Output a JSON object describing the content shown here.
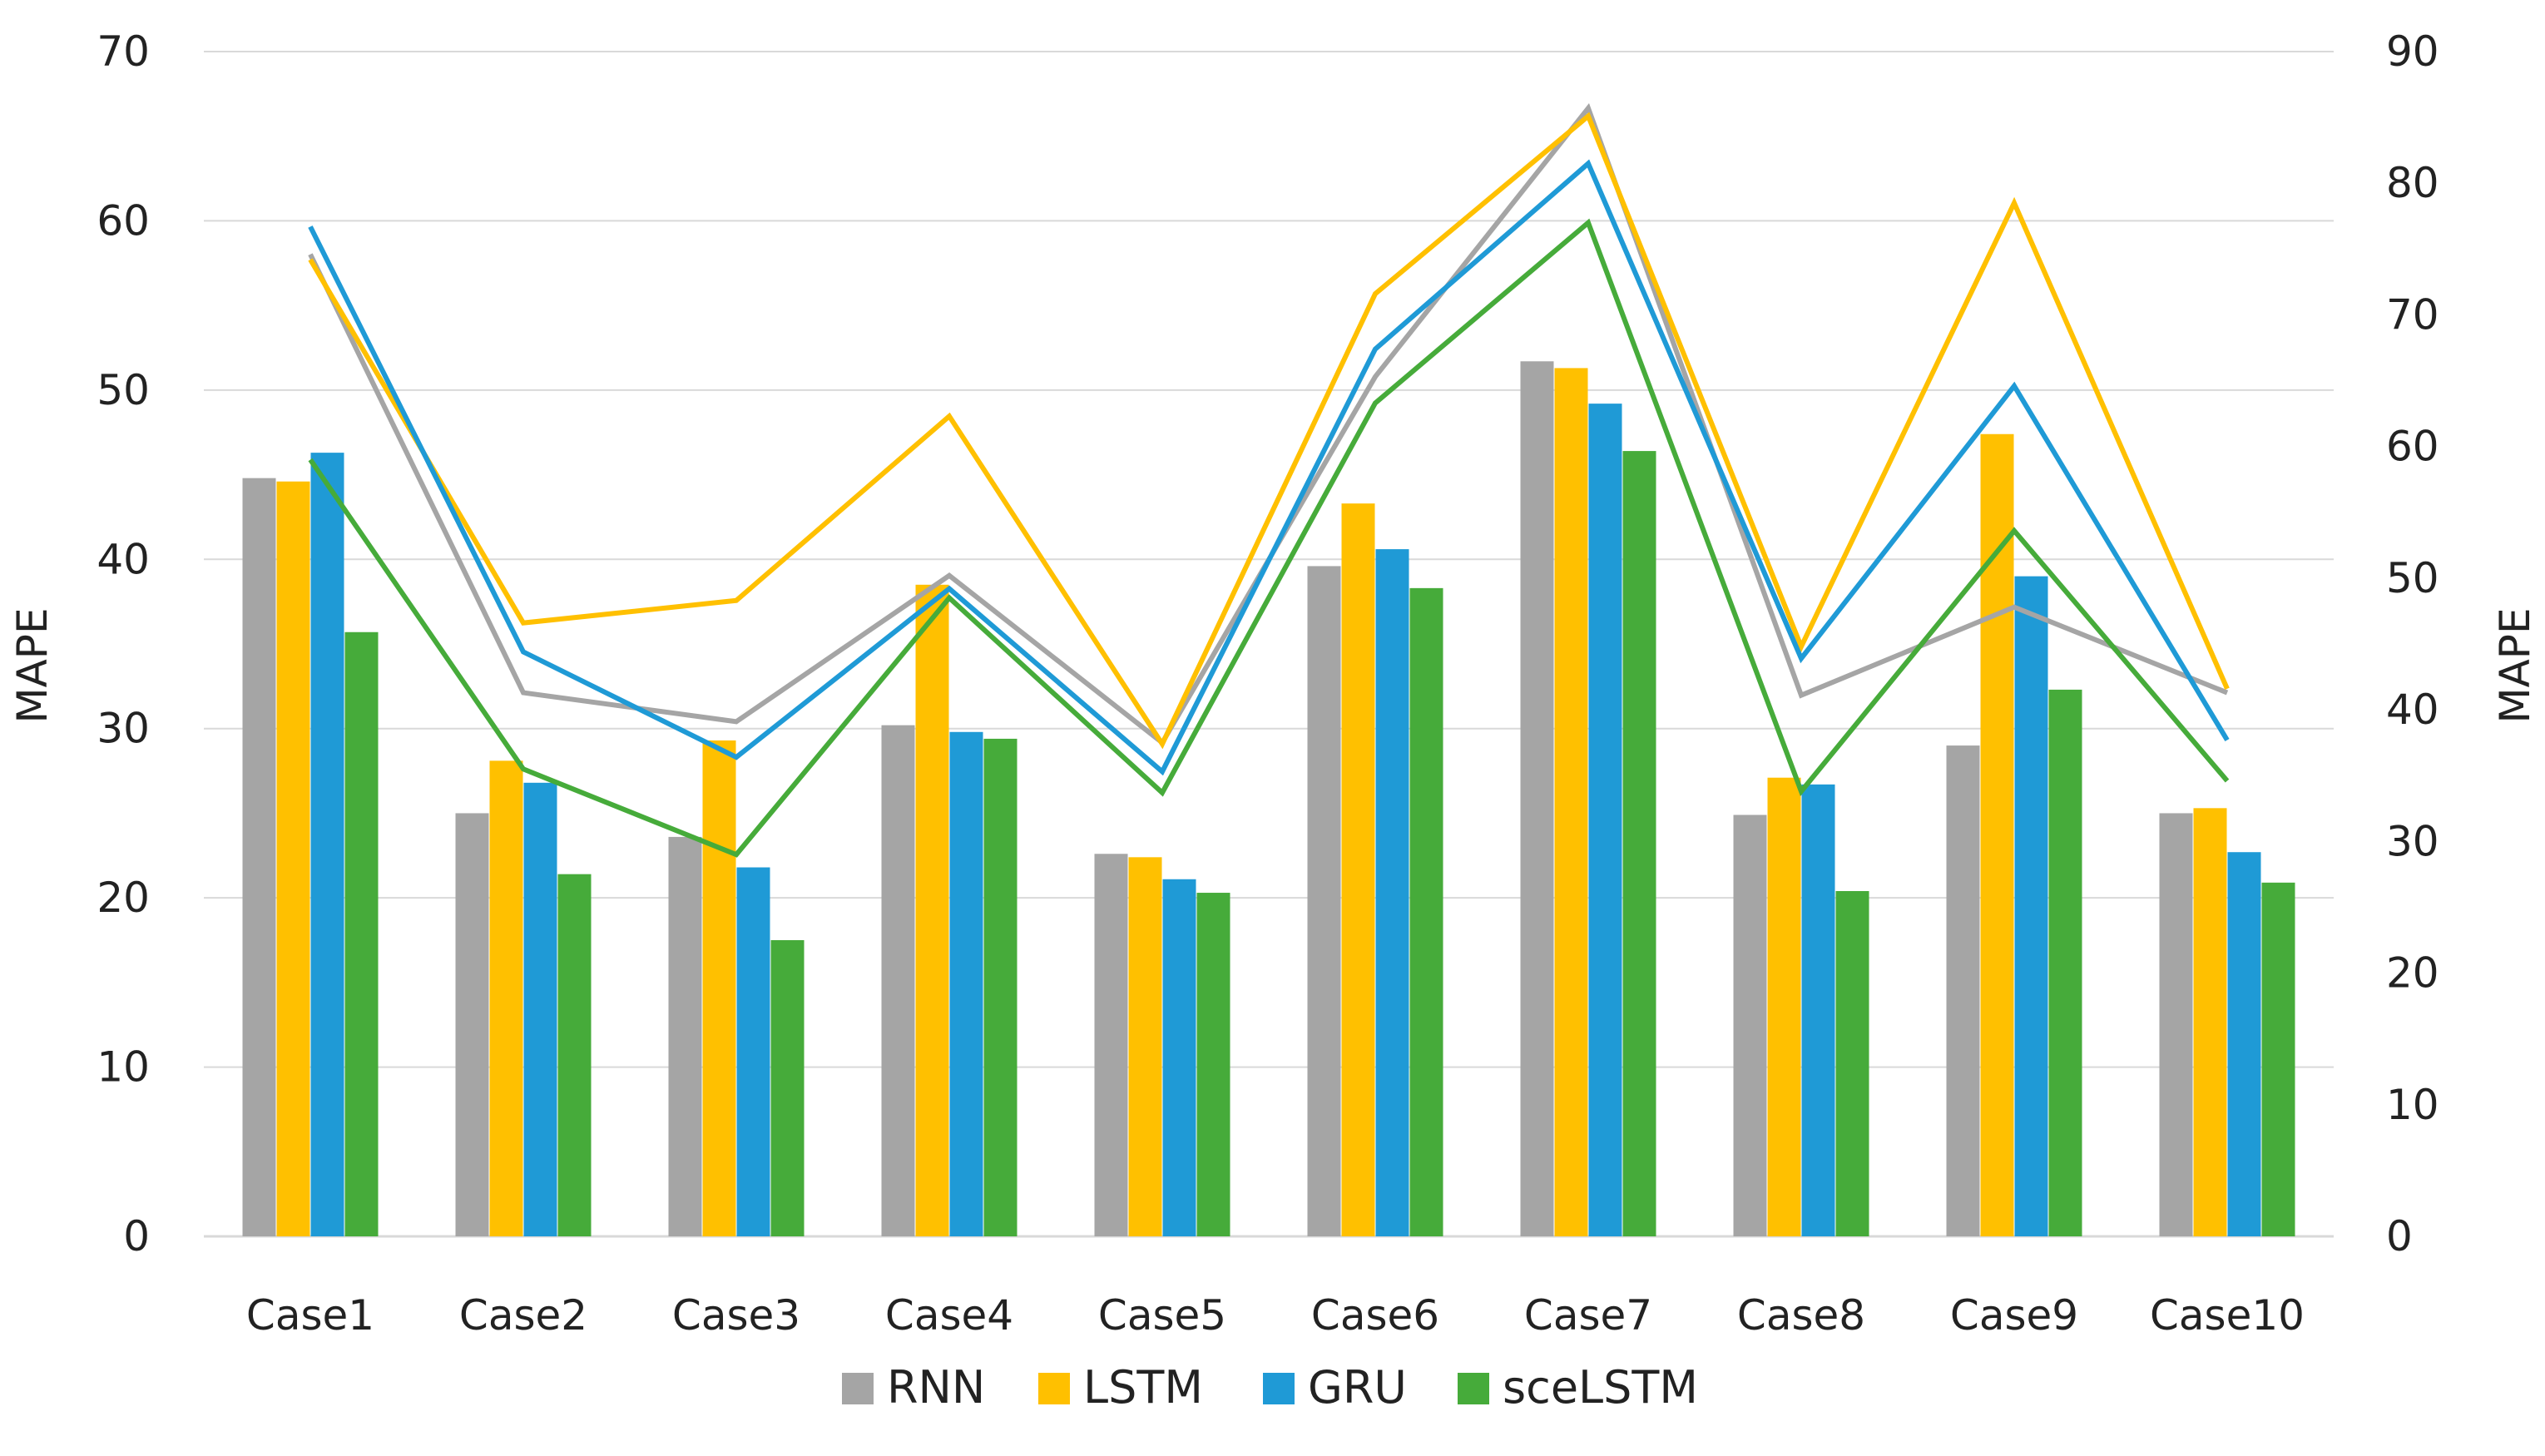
{
  "chart_data": {
    "type": "bar",
    "title": "",
    "xlabel": "",
    "ylabel": "MAPE",
    "y2label": "MAPE",
    "ylim": [
      0,
      70
    ],
    "y2lim": [
      0,
      90
    ],
    "yticks": [
      0,
      10,
      20,
      30,
      40,
      50,
      60,
      70
    ],
    "y2ticks": [
      0,
      10,
      20,
      30,
      40,
      50,
      60,
      70,
      80,
      90
    ],
    "grid": true,
    "legend_position": "bottom",
    "categories": [
      "Case1",
      "Case2",
      "Case3",
      "Case4",
      "Case5",
      "Case6",
      "Case7",
      "Case8",
      "Case9",
      "Case10"
    ],
    "series": [
      {
        "name": "RNN",
        "color": "#a5a5a5",
        "values": [
          44.8,
          25.0,
          23.6,
          30.2,
          22.6,
          39.6,
          51.7,
          24.9,
          29.0,
          25.0
        ]
      },
      {
        "name": "LSTM",
        "color": "#ffc000",
        "values": [
          44.6,
          28.1,
          29.3,
          38.5,
          22.4,
          43.3,
          51.3,
          27.1,
          47.4,
          25.3
        ]
      },
      {
        "name": "GRU",
        "color": "#1f9ad6",
        "values": [
          46.3,
          26.8,
          21.8,
          29.8,
          21.1,
          40.6,
          49.2,
          26.7,
          39.0,
          22.7
        ]
      },
      {
        "name": "sceLSTM",
        "color": "#46ab3a",
        "values": [
          35.7,
          21.4,
          17.5,
          29.4,
          20.3,
          38.3,
          46.4,
          20.4,
          32.3,
          20.9
        ]
      }
    ],
    "line_series": [
      {
        "name": "RNN",
        "color": "#a5a5a5",
        "axis": "right",
        "values": [
          74.6,
          41.3,
          39.1,
          50.2,
          37.5,
          65.3,
          85.7,
          41.1,
          47.8,
          41.3
        ]
      },
      {
        "name": "LSTM",
        "color": "#ffc000",
        "axis": "right",
        "values": [
          74.2,
          46.6,
          48.3,
          62.3,
          37.4,
          71.6,
          85.1,
          44.8,
          78.5,
          41.6
        ]
      },
      {
        "name": "GRU",
        "color": "#1f9ad6",
        "axis": "right",
        "values": [
          76.7,
          44.4,
          36.4,
          49.2,
          35.3,
          67.4,
          81.5,
          43.9,
          64.6,
          37.7
        ]
      },
      {
        "name": "sceLSTM",
        "color": "#46ab3a",
        "axis": "right",
        "values": [
          59.0,
          35.5,
          29.0,
          48.5,
          33.7,
          63.3,
          77.0,
          33.8,
          53.6,
          34.6
        ]
      }
    ]
  }
}
